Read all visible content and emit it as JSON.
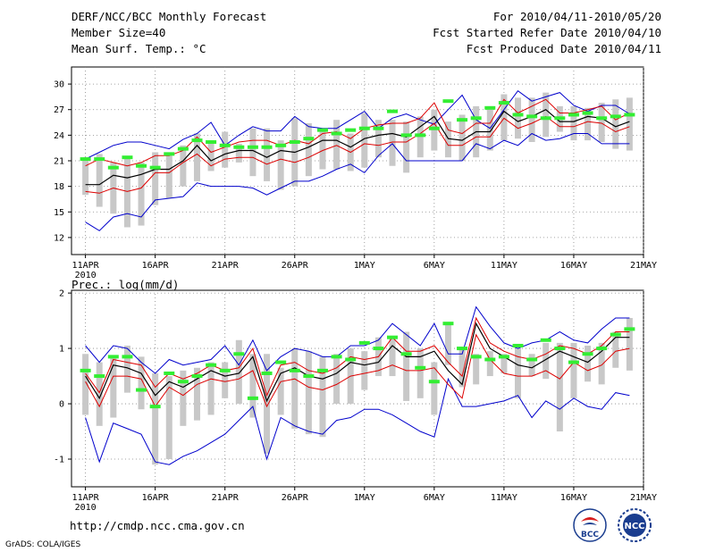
{
  "header": {
    "title": "DERF/NCC/BCC Monthly Forecast",
    "member_size": "Member Size=40",
    "variable1": "Mean Surf. Temp.: °C",
    "forecast_period": "For 2010/04/11-2010/05/20",
    "start_date": "Fcst Started Refer Date 2010/04/10",
    "produced_date": "Fcst Produced Date 2010/04/11"
  },
  "panel2_title": "Prec.: log(mm/d)",
  "footer": {
    "url": "http://cmdp.ncc.cma.gov.cn",
    "grads": "GrADS: COLA/IGES",
    "logo1_text": "BCC",
    "logo2_text": "NCC"
  },
  "colors": {
    "envelope": "#0000cc",
    "spread": "#dd0000",
    "mean": "#000000",
    "box": "#c8c8c8",
    "obs": "#33ee33",
    "grid": "#888888"
  },
  "chart_data": [
    {
      "type": "line",
      "title": "Mean Surf. Temp.: °C",
      "x": [
        1,
        2,
        3,
        4,
        5,
        6,
        7,
        8,
        9,
        10,
        11,
        12,
        13,
        14,
        15,
        16,
        17,
        18,
        19,
        20,
        21,
        22,
        23,
        24,
        25,
        26,
        27,
        28,
        29,
        30,
        31,
        32,
        33,
        34,
        35,
        36,
        37,
        38,
        39,
        40
      ],
      "xlim": [
        0,
        41
      ],
      "ylim": [
        10,
        32
      ],
      "yticks": [
        12,
        15,
        18,
        21,
        24,
        27,
        30
      ],
      "ytick_labels": [
        "12",
        "15",
        "18",
        "21",
        "24",
        "27",
        "30"
      ],
      "xticks": [
        1,
        6,
        11,
        16,
        21,
        26,
        31,
        36,
        41
      ],
      "xtick_labels": [
        "11APR",
        "16APR",
        "21APR",
        "26APR",
        "1MAY",
        "6MAY",
        "11MAY",
        "16MAY",
        "21MAY"
      ],
      "x_year_label": "2010",
      "series": [
        {
          "name": "max",
          "values": [
            21.2,
            22.0,
            22.8,
            23.2,
            23.2,
            22.8,
            22.4,
            23.5,
            24.2,
            25.5,
            22.8,
            24.0,
            25.0,
            24.5,
            24.5,
            26.2,
            25.0,
            24.8,
            24.8,
            25.8,
            26.8,
            24.8,
            26.0,
            26.5,
            25.8,
            25.3,
            27.0,
            28.7,
            25.8,
            24.8,
            27.0,
            29.2,
            28.0,
            28.5,
            29.0,
            27.5,
            26.8,
            27.5,
            27.5,
            26.5
          ]
        },
        {
          "name": "upper",
          "values": [
            20.4,
            21.2,
            20.8,
            20.4,
            20.8,
            21.6,
            21.6,
            22.2,
            23.8,
            22.0,
            22.6,
            23.2,
            23.4,
            23.4,
            22.8,
            23.4,
            23.0,
            24.2,
            24.4,
            23.6,
            24.8,
            25.2,
            25.4,
            25.4,
            26.0,
            27.8,
            24.6,
            24.2,
            25.4,
            25.4,
            28.2,
            26.6,
            27.4,
            28.2,
            26.6,
            26.6,
            27.0,
            27.4,
            25.8,
            26.6
          ]
        },
        {
          "name": "mean",
          "values": [
            18.2,
            18.2,
            19.3,
            19.0,
            19.4,
            20.0,
            20.0,
            21.0,
            22.8,
            21.0,
            21.8,
            22.2,
            22.2,
            21.4,
            22.2,
            22.0,
            22.6,
            23.4,
            23.4,
            22.6,
            23.6,
            24.0,
            24.2,
            23.8,
            25.0,
            26.2,
            23.6,
            23.4,
            24.4,
            24.4,
            26.8,
            25.6,
            26.2,
            27.0,
            25.6,
            25.6,
            26.2,
            26.0,
            25.0,
            25.6
          ]
        },
        {
          "name": "lower",
          "values": [
            17.4,
            17.2,
            17.8,
            17.4,
            17.8,
            19.6,
            19.6,
            20.8,
            21.8,
            20.4,
            21.2,
            21.4,
            21.4,
            20.6,
            21.2,
            20.8,
            21.4,
            22.2,
            22.8,
            22.0,
            23.0,
            22.8,
            23.2,
            23.2,
            24.2,
            25.4,
            22.8,
            22.8,
            23.8,
            23.8,
            26.0,
            24.8,
            25.4,
            26.2,
            25.0,
            25.0,
            25.6,
            25.4,
            24.4,
            25.0
          ]
        },
        {
          "name": "min",
          "values": [
            13.8,
            12.8,
            14.4,
            14.8,
            14.4,
            16.4,
            16.6,
            16.8,
            18.4,
            18.0,
            18.0,
            18.0,
            17.8,
            17.0,
            17.8,
            18.6,
            18.6,
            19.2,
            20.0,
            20.6,
            19.6,
            21.6,
            23.0,
            21.0,
            21.0,
            21.0,
            21.0,
            21.0,
            23.0,
            22.4,
            23.4,
            22.8,
            24.2,
            23.4,
            23.6,
            24.2,
            24.2,
            23.0,
            23.0,
            23.0
          ]
        },
        {
          "name": "box_top",
          "values": [
            21.4,
            21.8,
            20.8,
            21.4,
            20.8,
            22.0,
            21.8,
            22.8,
            24.2,
            23.4,
            24.4,
            23.0,
            24.8,
            24.8,
            23.4,
            26.0,
            25.4,
            24.8,
            25.8,
            24.2,
            26.6,
            25.8,
            25.8,
            25.6,
            26.2,
            27.0,
            25.6,
            26.4,
            27.4,
            27.4,
            28.8,
            28.4,
            28.4,
            29.0,
            27.4,
            27.4,
            27.2,
            27.8,
            28.2,
            28.4
          ]
        },
        {
          "name": "box_bottom",
          "values": [
            17.0,
            15.6,
            14.8,
            13.2,
            13.4,
            15.8,
            16.6,
            18.0,
            18.6,
            19.8,
            20.2,
            20.8,
            19.2,
            18.6,
            17.6,
            18.0,
            19.2,
            20.0,
            20.0,
            19.8,
            20.2,
            21.4,
            20.4,
            19.6,
            21.4,
            22.2,
            21.4,
            21.0,
            21.4,
            22.2,
            23.4,
            23.6,
            23.2,
            23.8,
            24.4,
            23.4,
            23.4,
            23.2,
            22.4,
            22.2
          ]
        },
        {
          "name": "observed",
          "values": [
            21.2,
            21.2,
            20.2,
            21.4,
            20.4,
            20.2,
            21.8,
            22.4,
            23.4,
            23.2,
            22.8,
            22.6,
            22.6,
            22.6,
            22.8,
            23.2,
            23.6,
            24.6,
            24.2,
            24.6,
            24.8,
            24.8,
            26.8,
            24.0,
            24.0,
            24.8,
            28.0,
            25.8,
            26.0,
            27.2,
            27.8,
            26.4,
            26.2,
            26.0,
            26.0,
            26.4,
            26.6,
            26.0,
            26.2,
            26.4
          ]
        }
      ]
    },
    {
      "type": "line",
      "title": "Prec.: log(mm/d)",
      "x": [
        1,
        2,
        3,
        4,
        5,
        6,
        7,
        8,
        9,
        10,
        11,
        12,
        13,
        14,
        15,
        16,
        17,
        18,
        19,
        20,
        21,
        22,
        23,
        24,
        25,
        26,
        27,
        28,
        29,
        30,
        31,
        32,
        33,
        34,
        35,
        36,
        37,
        38,
        39,
        40
      ],
      "xlim": [
        0,
        41
      ],
      "ylim": [
        -1.5,
        2.05
      ],
      "yticks": [
        -1,
        0,
        1,
        2
      ],
      "ytick_labels": [
        "-1",
        "0",
        "1",
        "2"
      ],
      "xticks": [
        1,
        6,
        11,
        16,
        21,
        26,
        31,
        36,
        41
      ],
      "xtick_labels": [
        "11APR",
        "16APR",
        "21APR",
        "26APR",
        "1MAY",
        "6MAY",
        "11MAY",
        "16MAY",
        "21MAY"
      ],
      "x_year_label": "2010",
      "series": [
        {
          "name": "max",
          "values": [
            1.05,
            0.75,
            1.05,
            1.0,
            0.75,
            0.55,
            0.8,
            0.7,
            0.75,
            0.8,
            1.05,
            0.7,
            1.15,
            0.6,
            0.85,
            1.0,
            0.95,
            0.85,
            0.85,
            1.05,
            1.05,
            1.15,
            1.45,
            1.25,
            1.05,
            1.45,
            0.9,
            0.9,
            1.75,
            1.4,
            1.1,
            1.0,
            1.1,
            1.15,
            1.3,
            1.15,
            1.1,
            1.35,
            1.55,
            1.55
          ]
        },
        {
          "name": "upper",
          "values": [
            0.55,
            0.2,
            0.8,
            0.75,
            0.7,
            0.3,
            0.55,
            0.45,
            0.55,
            0.7,
            0.6,
            0.65,
            1.0,
            0.15,
            0.7,
            0.75,
            0.6,
            0.55,
            0.65,
            0.85,
            0.8,
            0.85,
            1.2,
            0.95,
            0.95,
            1.05,
            0.75,
            0.5,
            1.55,
            1.1,
            0.95,
            0.85,
            0.8,
            0.9,
            1.05,
            1.0,
            0.9,
            1.05,
            1.3,
            1.3
          ]
        },
        {
          "name": "mean",
          "values": [
            0.5,
            0.1,
            0.7,
            0.65,
            0.55,
            0.15,
            0.4,
            0.3,
            0.45,
            0.6,
            0.5,
            0.55,
            0.85,
            0.05,
            0.55,
            0.65,
            0.5,
            0.45,
            0.55,
            0.75,
            0.7,
            0.75,
            1.05,
            0.85,
            0.85,
            0.95,
            0.6,
            0.35,
            1.45,
            1.0,
            0.85,
            0.7,
            0.65,
            0.8,
            0.95,
            0.85,
            0.75,
            0.95,
            1.2,
            1.2
          ]
        },
        {
          "name": "lower",
          "values": [
            0.4,
            -0.05,
            0.5,
            0.5,
            0.45,
            -0.05,
            0.3,
            0.15,
            0.35,
            0.45,
            0.4,
            0.45,
            0.6,
            -0.05,
            0.4,
            0.45,
            0.3,
            0.25,
            0.35,
            0.5,
            0.55,
            0.6,
            0.7,
            0.6,
            0.6,
            0.65,
            0.35,
            0.1,
            1.25,
            0.8,
            0.55,
            0.5,
            0.5,
            0.6,
            0.45,
            0.75,
            0.6,
            0.7,
            0.95,
            1.0
          ]
        },
        {
          "name": "min",
          "values": [
            -0.25,
            -1.05,
            -0.35,
            -0.45,
            -0.55,
            -1.05,
            -1.1,
            -0.95,
            -0.85,
            -0.7,
            -0.55,
            -0.3,
            -0.05,
            -1.0,
            -0.25,
            -0.4,
            -0.5,
            -0.55,
            -0.3,
            -0.25,
            -0.1,
            -0.1,
            -0.2,
            -0.35,
            -0.5,
            -0.6,
            0.45,
            -0.05,
            -0.05,
            0.0,
            0.05,
            0.15,
            -0.25,
            0.05,
            -0.1,
            0.1,
            -0.05,
            -0.1,
            0.2,
            0.15
          ]
        },
        {
          "name": "box_top",
          "values": [
            0.9,
            0.75,
            0.85,
            1.05,
            0.85,
            0.55,
            0.5,
            0.6,
            0.65,
            0.75,
            0.75,
            1.15,
            0.9,
            0.9,
            0.65,
            1.0,
            0.95,
            0.85,
            0.9,
            1.0,
            0.95,
            1.2,
            1.2,
            1.3,
            1.0,
            0.75,
            1.45,
            1.0,
            0.9,
            0.95,
            0.9,
            1.0,
            0.9,
            1.1,
            1.1,
            1.1,
            1.05,
            1.1,
            1.3,
            1.55
          ]
        },
        {
          "name": "box_bottom",
          "values": [
            -0.2,
            -0.4,
            -0.25,
            0.2,
            -0.1,
            -1.1,
            -1.0,
            -0.4,
            -0.3,
            -0.2,
            0.1,
            0.0,
            -0.25,
            -0.9,
            -0.2,
            -0.45,
            -0.55,
            -0.6,
            0.0,
            0.0,
            0.25,
            0.5,
            0.5,
            0.05,
            0.1,
            -0.2,
            0.7,
            0.3,
            0.35,
            0.5,
            0.55,
            0.1,
            0.5,
            0.45,
            -0.5,
            0.1,
            0.4,
            0.35,
            0.65,
            0.6
          ]
        },
        {
          "name": "observed",
          "values": [
            0.6,
            0.5,
            0.85,
            0.85,
            0.25,
            -0.05,
            0.55,
            0.4,
            0.5,
            0.7,
            0.6,
            0.9,
            0.1,
            0.55,
            0.75,
            0.6,
            0.5,
            0.6,
            0.85,
            0.8,
            1.1,
            1.0,
            1.2,
            0.9,
            0.65,
            0.4,
            1.45,
            1.0,
            0.85,
            0.8,
            0.85,
            1.05,
            0.8,
            1.15,
            1.0,
            0.75,
            0.9,
            1.0,
            1.25,
            1.35
          ]
        }
      ]
    }
  ]
}
